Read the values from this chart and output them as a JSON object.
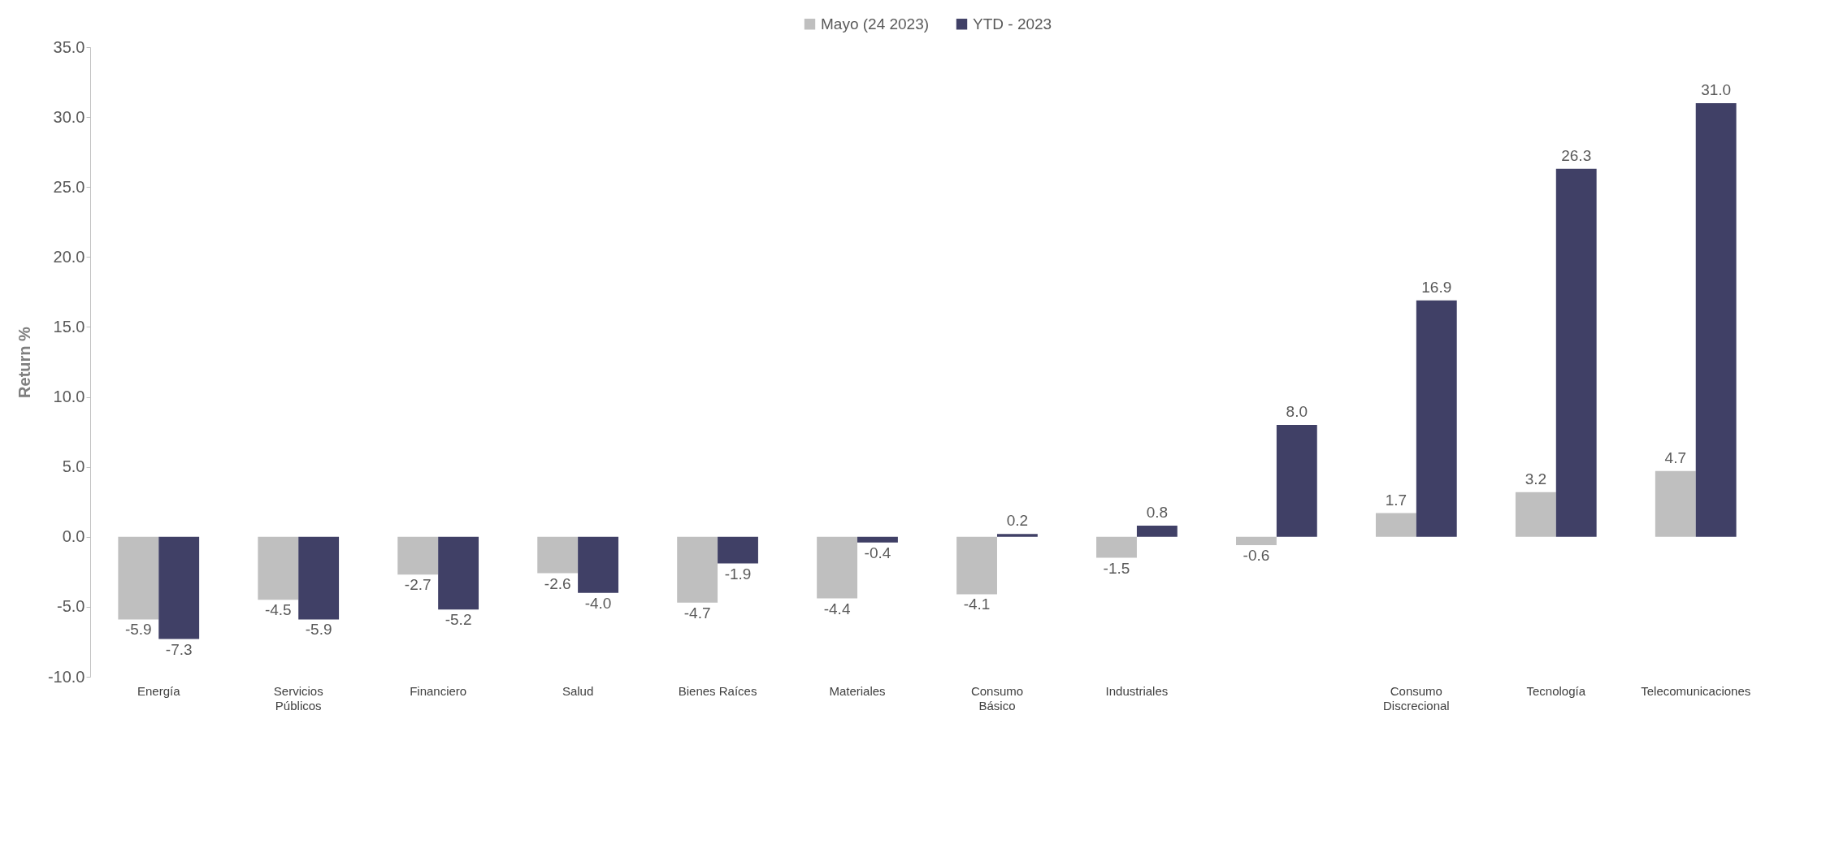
{
  "chart_data": {
    "type": "bar",
    "ylabel": "Return %",
    "categories": [
      "Energía",
      "Servicios\nPúblicos",
      "Financiero",
      "Salud",
      "Bienes Raíces",
      "Materiales",
      "Consumo\nBásico",
      "Industriales",
      null,
      "Consumo\nDiscrecional",
      "Tecnología",
      "Telecomunicaciones"
    ],
    "series": [
      {
        "name": "Mayo (24 2023)",
        "color": "#bfbfbf",
        "values": [
          -5.9,
          -4.5,
          -2.7,
          -2.6,
          -4.7,
          -4.4,
          -4.1,
          -1.5,
          -0.6,
          1.7,
          3.2,
          4.7
        ],
        "value_labels": [
          "-5.9",
          "-4.5",
          "-2.7",
          "-2.6",
          "-4.7",
          "-4.4",
          "-4.1",
          "-1.5",
          "-0.6",
          "1.7",
          "3.2",
          "4.7"
        ]
      },
      {
        "name": "YTD - 2023",
        "color": "#404066",
        "values": [
          -7.3,
          -5.9,
          -5.2,
          -4.0,
          -1.9,
          -0.4,
          0.2,
          0.8,
          8.0,
          16.9,
          26.3,
          31.0
        ],
        "value_labels": [
          "-7.3",
          "-5.9",
          "-5.2",
          "-4.0",
          "-1.9",
          "-0.4",
          "0.2",
          "0.8",
          "8.0",
          "16.9",
          "26.3",
          "31.0"
        ]
      }
    ],
    "ylim": [
      -10,
      35
    ],
    "yticks": [
      {
        "value": -10,
        "label": "-10.0"
      },
      {
        "value": -5,
        "label": "-5.0"
      },
      {
        "value": 0,
        "label": "0.0"
      },
      {
        "value": 5,
        "label": "5.0"
      },
      {
        "value": 10,
        "label": "10.0"
      },
      {
        "value": 15,
        "label": "15.0"
      },
      {
        "value": 20,
        "label": "20.0"
      },
      {
        "value": 25,
        "label": "25.0"
      },
      {
        "value": 30,
        "label": "30.0"
      },
      {
        "value": 35,
        "label": "35.0"
      }
    ],
    "legend": "top",
    "grid": false
  }
}
